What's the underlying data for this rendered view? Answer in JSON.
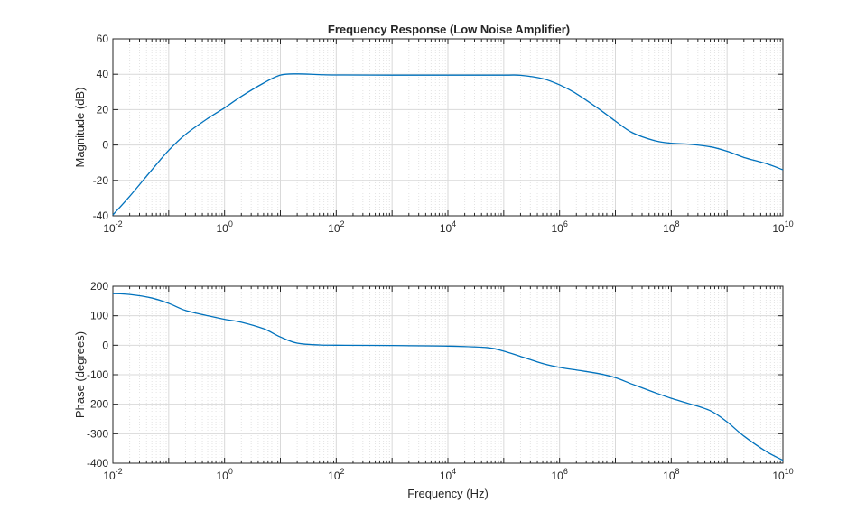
{
  "figure": {
    "title": "Frequency Response (Low Noise Amplifier)",
    "series_color": "#0072bd",
    "grid_color": "#d9d9d9",
    "axis_color": "#262626"
  },
  "chart_data": [
    {
      "type": "line",
      "title": "Frequency Response (Low Noise Amplifier)",
      "xlabel": "",
      "ylabel": "Magnitude (dB)",
      "xscale": "log",
      "xlim": [
        0.01,
        10000000000
      ],
      "ylim": [
        -40,
        60
      ],
      "grid": true,
      "x_ticks": [
        {
          "base": "10",
          "exp": "-2"
        },
        {
          "base": "10",
          "exp": "0"
        },
        {
          "base": "10",
          "exp": "2"
        },
        {
          "base": "10",
          "exp": "4"
        },
        {
          "base": "10",
          "exp": "6"
        },
        {
          "base": "10",
          "exp": "8"
        },
        {
          "base": "10",
          "exp": "10"
        }
      ],
      "y_ticks": [
        "60",
        "40",
        "20",
        "0",
        "-20",
        "-40"
      ],
      "series": [
        {
          "x": [
            0.01,
            0.02,
            0.05,
            0.1,
            0.2,
            0.5,
            1,
            2,
            5,
            10,
            20,
            50,
            100,
            1000,
            10000,
            100000,
            200000,
            500000,
            1000000,
            2000000,
            5000000,
            10000000,
            20000000,
            50000000,
            100000000,
            200000000,
            500000000,
            1000000000,
            2000000000,
            5000000000,
            10000000000
          ],
          "y": [
            -39.5,
            -29,
            -14,
            -3,
            6,
            15,
            21,
            27.5,
            35,
            39.5,
            40.2,
            39.8,
            39.6,
            39.5,
            39.5,
            39.5,
            39.4,
            37.5,
            34,
            29,
            20.5,
            13.5,
            7,
            2.5,
            1,
            0.5,
            -1,
            -3.5,
            -7,
            -10.5,
            -14
          ]
        }
      ]
    },
    {
      "type": "line",
      "title": "",
      "xlabel": "Frequency (Hz)",
      "ylabel": "Phase (degrees)",
      "xscale": "log",
      "xlim": [
        0.01,
        10000000000
      ],
      "ylim": [
        -400,
        200
      ],
      "grid": true,
      "x_ticks": [
        {
          "base": "10",
          "exp": "-2"
        },
        {
          "base": "10",
          "exp": "0"
        },
        {
          "base": "10",
          "exp": "2"
        },
        {
          "base": "10",
          "exp": "4"
        },
        {
          "base": "10",
          "exp": "6"
        },
        {
          "base": "10",
          "exp": "8"
        },
        {
          "base": "10",
          "exp": "10"
        }
      ],
      "y_ticks": [
        "200",
        "100",
        "0",
        "-100",
        "-200",
        "-300",
        "-400"
      ],
      "series": [
        {
          "x": [
            0.01,
            0.02,
            0.05,
            0.1,
            0.2,
            0.5,
            1,
            2,
            5,
            10,
            20,
            50,
            100,
            1000,
            10000,
            50000,
            100000,
            200000,
            500000,
            1000000,
            2000000,
            5000000,
            10000000,
            20000000,
            50000000,
            100000000,
            200000000,
            500000000,
            1000000000,
            2000000000,
            5000000000,
            10000000000
          ],
          "y": [
            175,
            172,
            160,
            142,
            118,
            100,
            88,
            78,
            56,
            28,
            7,
            1,
            0,
            -1,
            -3,
            -8,
            -20,
            -38,
            -62,
            -75,
            -84,
            -96,
            -110,
            -132,
            -160,
            -180,
            -197,
            -222,
            -260,
            -308,
            -360,
            -390
          ]
        }
      ]
    }
  ]
}
